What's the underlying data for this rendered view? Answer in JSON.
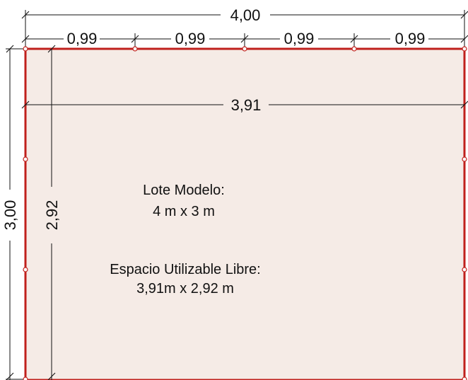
{
  "dimensions": {
    "total_width": "4,00",
    "segments": [
      "0,99",
      "0,99",
      "0,99",
      "0,99"
    ],
    "inner_width": "3,91",
    "total_height": "3,00",
    "inner_height": "2,92"
  },
  "labels": {
    "lot_title": "Lote Modelo:",
    "lot_size": "4 m x 3 m",
    "free_space_title": "Espacio Utilizable Libre:",
    "free_space_size": "3,91m x 2,92 m"
  },
  "colors": {
    "lot_fill": "#f5ebe6",
    "lot_border": "#c0201c",
    "node_fill": "#ffffff",
    "dimension_line": "#111111"
  }
}
